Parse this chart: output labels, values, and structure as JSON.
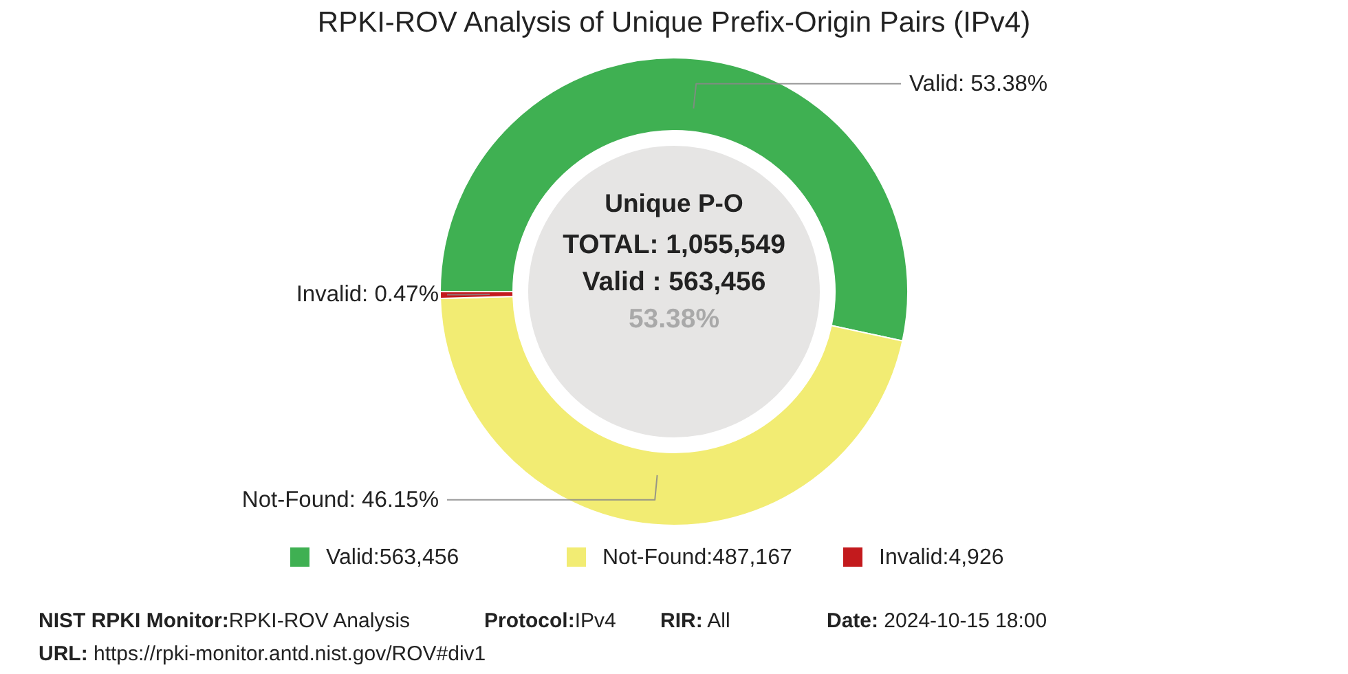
{
  "chart_data": {
    "type": "donut",
    "title": "RPKI-ROV Analysis of Unique Prefix-Origin Pairs (IPv4)",
    "categories": [
      "Valid:563,456",
      "Not-Found:487,167",
      "Invalid:4,926"
    ],
    "values": [
      53.38,
      46.15,
      0.47
    ],
    "colors": [
      "#3fb052",
      "#f2ec73",
      "#c31a1d"
    ],
    "value_labels": [
      "Valid: 53.38%",
      "Not-Found: 46.15%",
      "Invalid: 0.47%"
    ],
    "legend": "bottom",
    "annotations": [
      "Unique P-O",
      "TOTAL: 1,055,549",
      "Valid : 563,456",
      "53.38%",
      "NIST RPKI Monitor:RPKI-ROV Analysis",
      "Protocol:IPv4",
      "RIR: All",
      "Date: 2024-10-15 18:00",
      "URL: https://rpki-monitor.antd.nist.gov/ROV#div1"
    ]
  }
}
